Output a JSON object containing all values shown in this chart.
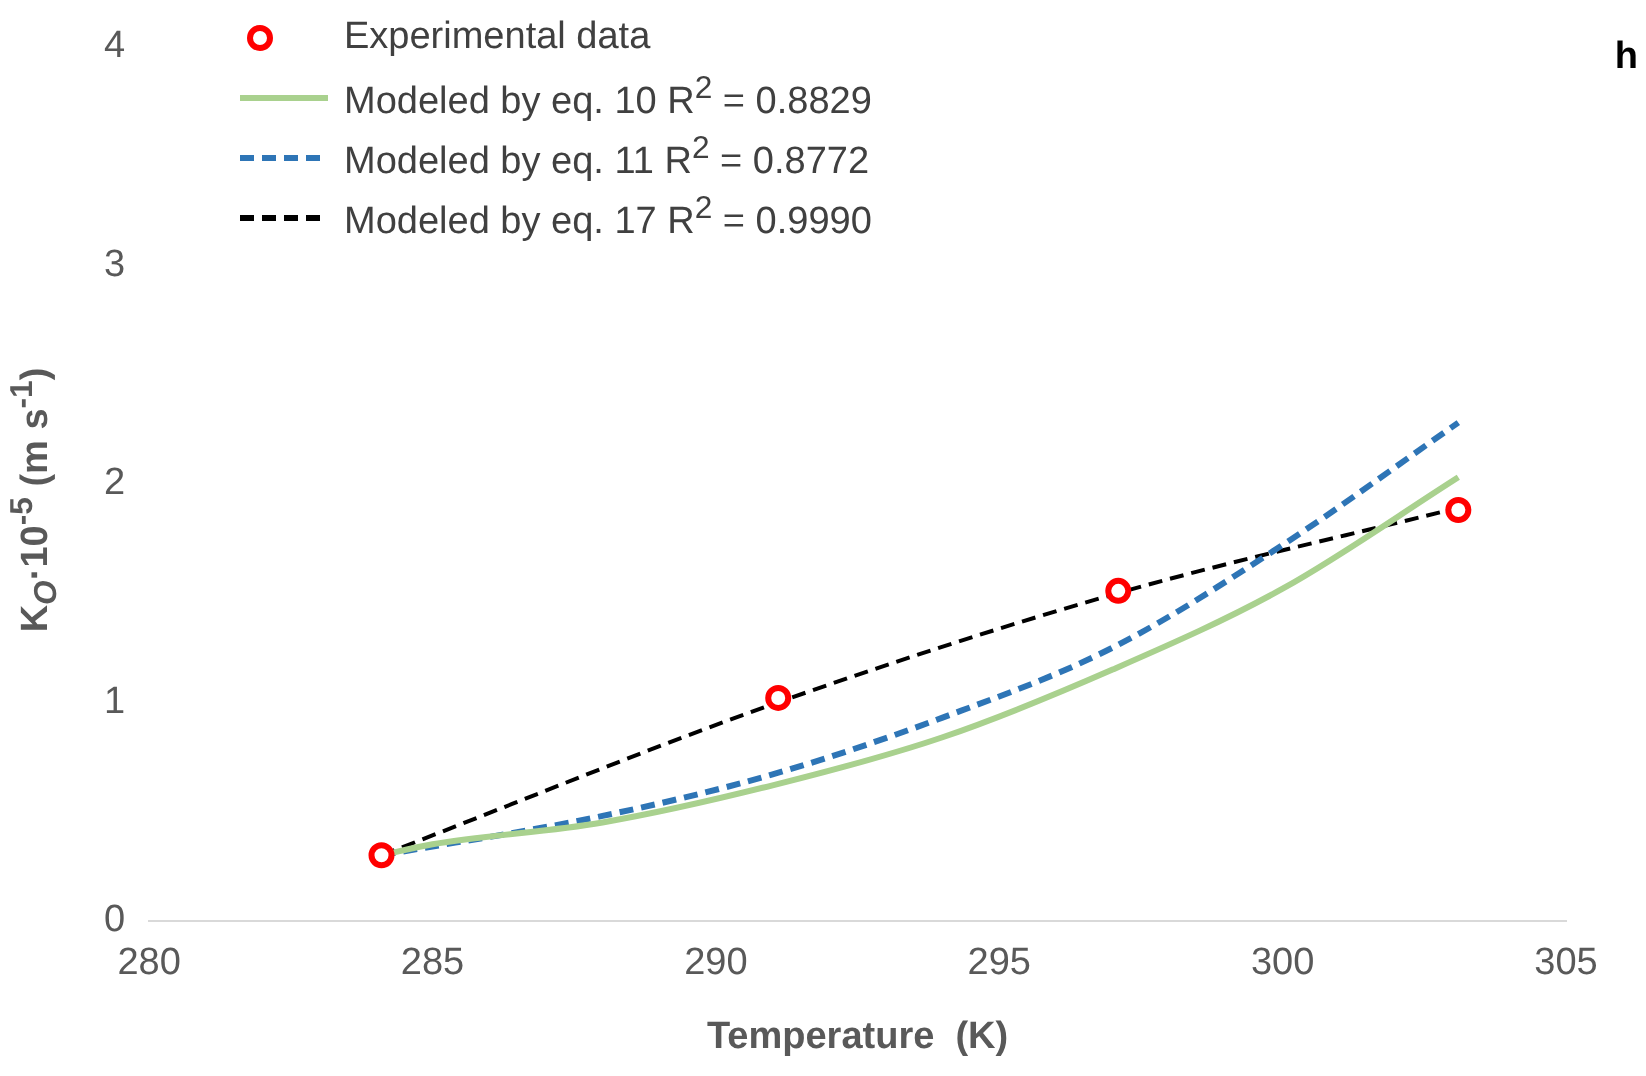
{
  "chart_data": {
    "type": "line",
    "xlabel": "Temperature  (K)",
    "ylabel": "K$_{O}$·10$^{-5}$ (m s$^{-1}$)",
    "xlim": [
      280,
      305
    ],
    "xticks": [
      280,
      285,
      290,
      295,
      300,
      305
    ],
    "ylim": [
      0,
      4
    ],
    "yticks": [
      0,
      1,
      2,
      3,
      4
    ],
    "grid": false,
    "legend": "top left",
    "annotations": [
      "h"
    ],
    "series": [
      {
        "name": "Experimental data",
        "type": "scatter",
        "marker": "circle",
        "color": "#ff0000",
        "x": [
          284.1,
          291.1,
          297.1,
          303.1
        ],
        "values": [
          0.3,
          1.02,
          1.51,
          1.88
        ]
      },
      {
        "name": "Modeled by eq. 10   R$^{2}$ = 0.8829",
        "type": "line",
        "line_style": "solid",
        "color": "#a9d18e",
        "x": [
          284.1,
          285,
          288,
          291,
          294,
          297,
          300,
          303.1
        ],
        "values": [
          0.3,
          0.35,
          0.45,
          0.62,
          0.84,
          1.15,
          1.52,
          2.03
        ]
      },
      {
        "name": "Modeled by eq. 11   R$^{2}$ = 0.8772",
        "type": "line",
        "line_style": "dashed",
        "color": "#2e75b6",
        "x": [
          284.1,
          288,
          291,
          294,
          297,
          300,
          303.1
        ],
        "values": [
          0.3,
          0.48,
          0.67,
          0.93,
          1.25,
          1.72,
          2.28
        ]
      },
      {
        "name": "Modeled by eq. 17   R$^{2}$ = 0.9990",
        "type": "line",
        "line_style": "dashed",
        "color": "#000000",
        "x": [
          284.1,
          291.1,
          297.1,
          303.1
        ],
        "values": [
          0.3,
          1.0,
          1.5,
          1.89
        ]
      }
    ]
  }
}
